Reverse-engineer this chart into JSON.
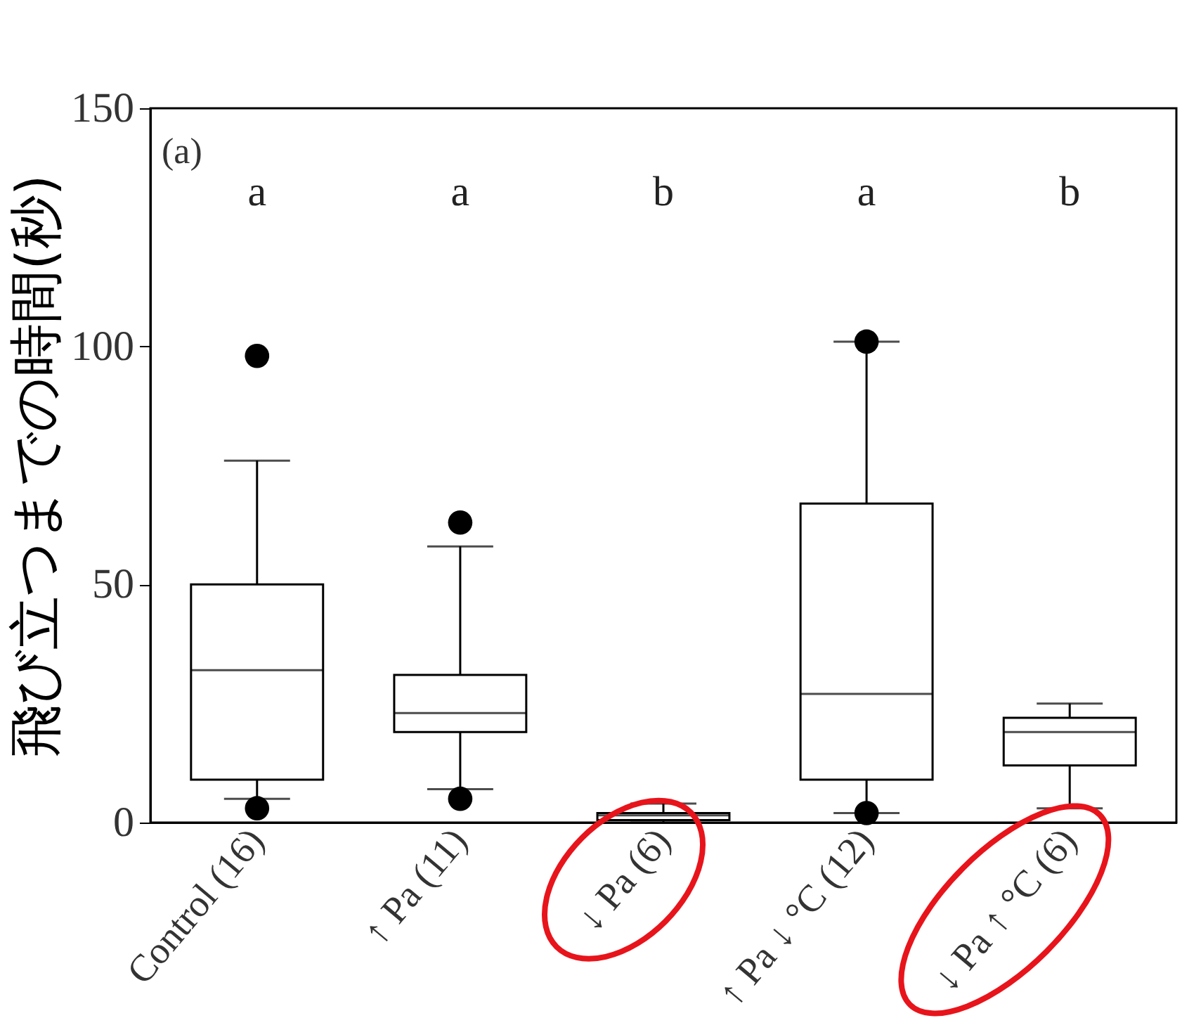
{
  "chart_data": {
    "type": "box",
    "ylabel": "飛び立つまでの時間(秒)",
    "categories": [
      "Control (16)",
      "↑ Pa (11)",
      "↓ Pa (6)",
      "↑ Pa ↓ °C (12)",
      "↓ Pa ↑ °C (6)"
    ],
    "series": [
      {
        "color": "#000000",
        "boxes": [
          {
            "low": 5,
            "q1": 9,
            "median": 32,
            "q3": 50,
            "high": 76,
            "outliers": [
              98,
              3
            ]
          },
          {
            "low": 7,
            "q1": 19,
            "median": 23,
            "q3": 31,
            "high": 58,
            "outliers": [
              63,
              5
            ]
          },
          {
            "low": 0,
            "q1": 0.5,
            "median": 1.5,
            "q3": 2,
            "high": 4
          },
          {
            "low": 2,
            "q1": 9,
            "median": 27,
            "q3": 67,
            "high": 101,
            "outliers": [
              101,
              2
            ]
          },
          {
            "low": 3,
            "q1": 12,
            "median": 19,
            "q3": 22,
            "high": 25
          }
        ]
      }
    ],
    "ylim": [
      0,
      150
    ],
    "yticks": [
      0,
      50,
      100,
      150
    ],
    "grid": false,
    "annotations": [
      "(a)",
      "a",
      "a",
      "b",
      "a",
      "b"
    ]
  }
}
